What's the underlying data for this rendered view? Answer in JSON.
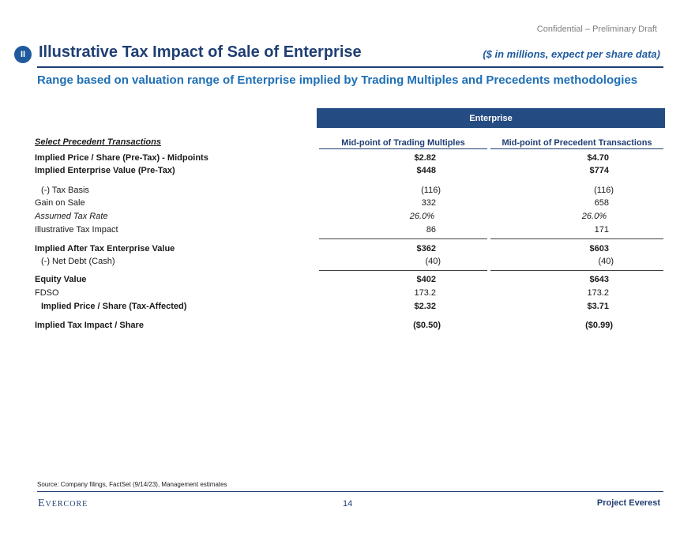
{
  "header": {
    "confidential": "Confidential – Preliminary Draft",
    "badge": "II",
    "title": "Illustrative Tax Impact of Sale of Enterprise",
    "units": "($ in millions, expect per share data)",
    "subtitle": "Range based on valuation range of Enterprise implied by Trading Multiples and Precedents methodologies"
  },
  "table": {
    "group_header": "Enterprise",
    "section_header": "Select Precedent Transactions",
    "columns": [
      "Mid-point of Trading Multiples",
      "Mid-point of Precedent Transactions"
    ],
    "rows": [
      {
        "label": "Implied Price / Share (Pre-Tax) - Midpoints",
        "v1": "$2.82",
        "v2": "$4.70"
      },
      {
        "label": "Implied Enterprise Value (Pre-Tax)",
        "v1": "$448",
        "v2": "$774"
      },
      {
        "label": "(-) Tax Basis",
        "v1": "(116)",
        "v2": "(116)"
      },
      {
        "label": "Gain on Sale",
        "v1": "332",
        "v2": "658"
      },
      {
        "label": "Assumed Tax Rate",
        "v1": "26.0%",
        "v2": "26.0%"
      },
      {
        "label": "Illustrative Tax Impact",
        "v1": "86",
        "v2": "171"
      },
      {
        "label": "Implied After Tax Enterprise Value",
        "v1": "$362",
        "v2": "$603"
      },
      {
        "label": "(-) Net Debt (Cash)",
        "v1": "(40)",
        "v2": "(40)"
      },
      {
        "label": "Equity Value",
        "v1": "$402",
        "v2": "$643"
      },
      {
        "label": "FDSO",
        "v1": "173.2",
        "v2": "173.2"
      },
      {
        "label": "Implied Price / Share (Tax-Affected)",
        "v1": "$2.32",
        "v2": "$3.71"
      },
      {
        "label": "Implied Tax Impact / Share",
        "v1": "($0.50)",
        "v2": "($0.99)"
      }
    ]
  },
  "footer": {
    "source": "Source: Company filings, FactSet (9/14/23), Management estimates",
    "logo": "Evercore",
    "page_number": "14",
    "project": "Project Everest"
  }
}
